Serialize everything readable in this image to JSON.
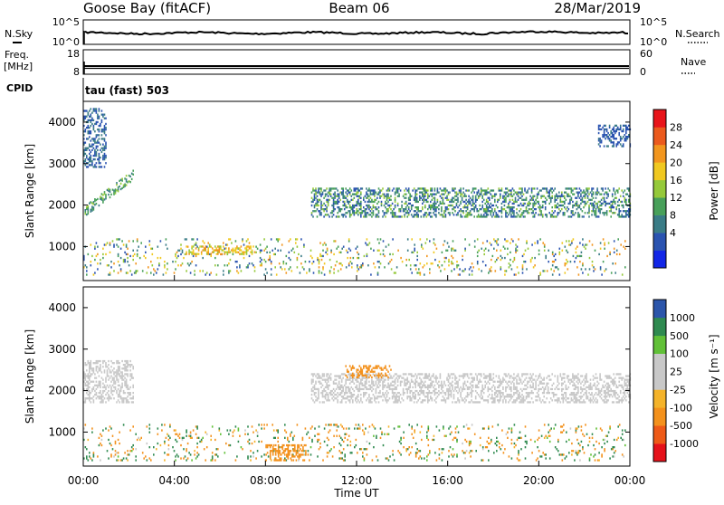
{
  "header": {
    "station": "Goose Bay (fitACF)",
    "beam": "Beam 06",
    "date": "28/Mar/2019"
  },
  "small_panels": {
    "nsky": {
      "label": "N.Sky",
      "ticks": [
        "10^5",
        "10^0"
      ]
    },
    "nsearch": {
      "label": "N.Search",
      "ticks": [
        "10^5",
        "10^0"
      ]
    },
    "freq": {
      "label_line1": "Freq.",
      "label_line2": "[MHz]",
      "ticks": [
        "18",
        "8"
      ]
    },
    "nave": {
      "label": "Nave",
      "ticks": [
        "60",
        "0"
      ]
    },
    "cpid": {
      "label": "CPID",
      "mode": "tau (fast) 503"
    }
  },
  "x_axis": {
    "label": "Time UT",
    "ticks": [
      "00:00",
      "04:00",
      "08:00",
      "12:00",
      "16:00",
      "20:00",
      "00:00"
    ]
  },
  "power_colorbar": {
    "label": "Power [dB]",
    "ticks": [
      "28",
      "24",
      "20",
      "16",
      "12",
      "8",
      "4"
    ]
  },
  "velocity_colorbar": {
    "label": "Velocity [m s⁻¹]",
    "ticks": [
      "1000",
      "500",
      "100",
      "25",
      "-25",
      "-100",
      "-500",
      "-1000"
    ]
  },
  "chart_data": [
    {
      "type": "heatmap",
      "title": "Power",
      "xlabel": "Time UT",
      "ylabel": "Slant Range [km]",
      "xlim": [
        0,
        24
      ],
      "ylim": [
        180,
        4500
      ],
      "yticks": [
        1000,
        2000,
        3000,
        4000
      ],
      "colorbar": {
        "label": "Power [dB]",
        "range": [
          0,
          32
        ],
        "ticks": [
          4,
          8,
          12,
          16,
          20,
          24,
          28
        ]
      },
      "features": [
        {
          "name": "near-range echoes",
          "time_start": 0.0,
          "time_end": 23.8,
          "range_start": 300,
          "range_end": 1200,
          "power_db": [
            4,
            24
          ]
        },
        {
          "name": "afternoon band",
          "time_start": 4.5,
          "time_end": 7.5,
          "range_start": 800,
          "range_end": 1000,
          "power_db": [
            16,
            24
          ]
        },
        {
          "name": "morning rising band",
          "time_start": 0.0,
          "time_end": 2.2,
          "range_start": 1700,
          "range_end": 2700,
          "power_db": [
            8,
            16
          ]
        },
        {
          "name": "far echoes",
          "time_start": 0.0,
          "time_end": 1.0,
          "range_start": 2900,
          "range_end": 4300,
          "power_db": [
            4,
            10
          ]
        },
        {
          "name": "main ionospheric band",
          "time_start": 10.0,
          "time_end": 24.0,
          "range_start": 1700,
          "range_end": 2400,
          "power_db": [
            4,
            16
          ]
        },
        {
          "name": "late far echoes",
          "time_start": 22.6,
          "time_end": 24.0,
          "range_start": 3400,
          "range_end": 3900,
          "power_db": [
            4,
            8
          ]
        }
      ]
    },
    {
      "type": "heatmap",
      "title": "Velocity",
      "xlabel": "Time UT",
      "ylabel": "Slant Range [km]",
      "xlim": [
        0,
        24
      ],
      "ylim": [
        180,
        4500
      ],
      "yticks": [
        1000,
        2000,
        3000,
        4000
      ],
      "colorbar": {
        "label": "Velocity [m s⁻¹]",
        "ticks": [
          1000,
          500,
          100,
          25,
          -25,
          -100,
          -500,
          -1000
        ]
      },
      "features": [
        {
          "name": "near-range mixed velocities",
          "time_start": 0.0,
          "time_end": 23.8,
          "range_start": 300,
          "range_end": 1200,
          "velocity": [
            -500,
            500
          ]
        },
        {
          "name": "main band low velocity",
          "time_start": 10.0,
          "time_end": 24.0,
          "range_start": 1700,
          "range_end": 2400,
          "velocity": [
            -25,
            25
          ]
        },
        {
          "name": "evening negative patch",
          "time_start": 11.5,
          "time_end": 13.5,
          "range_start": 2300,
          "range_end": 2600,
          "velocity": [
            -500,
            -100
          ]
        },
        {
          "name": "morning band low velocity",
          "time_start": 0.0,
          "time_end": 2.2,
          "range_start": 1700,
          "range_end": 2700,
          "velocity": [
            -25,
            25
          ]
        },
        {
          "name": "morning negative patch",
          "time_start": 8.0,
          "time_end": 9.8,
          "range_start": 300,
          "range_end": 700,
          "velocity": [
            -500,
            -100
          ]
        }
      ]
    }
  ]
}
